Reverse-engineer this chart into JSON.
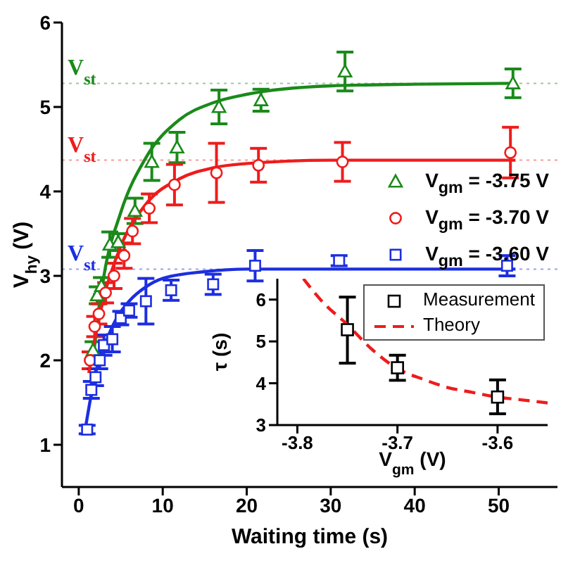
{
  "chart_data": [
    {
      "type": "scatter",
      "xlabel": "Waiting time (s)",
      "ylabel": "V$_{hy}$ (V)",
      "xlim": [
        -2,
        57
      ],
      "xticks": [
        0,
        10,
        20,
        30,
        40,
        50
      ],
      "ylim": [
        0.5,
        6
      ],
      "yticks": [
        1,
        2,
        3,
        4,
        5,
        6
      ],
      "legend": "right",
      "series": [
        {
          "name": "V$_{gm}$ = -3.75 V",
          "color": "#1a8a1a",
          "marker": "triangle",
          "x": [
            1.7,
            2.2,
            2.7,
            3.7,
            4.7,
            6.7,
            8.7,
            11.7,
            16.7,
            21.7,
            31.7,
            51.7
          ],
          "values": [
            2.12,
            2.77,
            2.88,
            3.37,
            3.4,
            3.77,
            4.35,
            4.52,
            5.0,
            5.08,
            5.42,
            5.28
          ],
          "errors": [
            0.1,
            0.1,
            0.1,
            0.15,
            0.1,
            0.15,
            0.22,
            0.18,
            0.2,
            0.13,
            0.23,
            0.17
          ]
        },
        {
          "name": "V$_{gm}$ = -3.70 V",
          "color": "#ee1c1c",
          "marker": "circle",
          "x": [
            1.35,
            1.9,
            2.4,
            3.2,
            4.2,
            5.4,
            6.4,
            8.4,
            11.4,
            16.4,
            21.4,
            31.4,
            51.4
          ],
          "values": [
            2.0,
            2.4,
            2.55,
            2.8,
            3.0,
            3.24,
            3.53,
            3.8,
            4.08,
            4.22,
            4.31,
            4.35,
            4.46
          ],
          "errors": [
            0.1,
            0.12,
            0.12,
            0.12,
            0.15,
            0.15,
            0.15,
            0.17,
            0.24,
            0.35,
            0.2,
            0.23,
            0.3
          ]
        },
        {
          "name": "V$_{gm}$ = -3.60 V",
          "color": "#1c2ee0",
          "marker": "square",
          "x": [
            1,
            1.5,
            2,
            2.5,
            3,
            4,
            5,
            6,
            8,
            11,
            16,
            21,
            31,
            51
          ],
          "values": [
            1.18,
            1.65,
            1.8,
            2.0,
            2.18,
            2.25,
            2.5,
            2.59,
            2.7,
            2.83,
            2.9,
            3.12,
            3.18,
            3.12
          ],
          "errors": [
            0.05,
            0.1,
            0.1,
            0.1,
            0.12,
            0.15,
            0.08,
            0.08,
            0.27,
            0.12,
            0.12,
            0.18,
            0.06,
            0.12
          ]
        },
        {
          "type": "line",
          "color": "#1a8a1a",
          "marker": "none",
          "x": [
            1.8,
            3,
            5,
            8,
            12,
            16,
            20,
            30,
            40,
            52
          ],
          "values": [
            2.1,
            3.0,
            3.75,
            4.4,
            4.85,
            5.05,
            5.15,
            5.25,
            5.27,
            5.28
          ]
        },
        {
          "type": "line",
          "color": "#ee1c1c",
          "marker": "none",
          "x": [
            1.2,
            2,
            3,
            5,
            8,
            12,
            16,
            20,
            30,
            52
          ],
          "values": [
            1.85,
            2.3,
            2.75,
            3.35,
            3.85,
            4.15,
            4.28,
            4.33,
            4.37,
            4.37
          ]
        },
        {
          "type": "line",
          "color": "#1c2ee0",
          "marker": "none",
          "x": [
            0.8,
            1.5,
            2,
            3,
            4,
            6,
            8,
            10,
            15,
            20,
            52
          ],
          "values": [
            1.2,
            1.6,
            1.85,
            2.15,
            2.4,
            2.7,
            2.87,
            2.97,
            3.05,
            3.08,
            3.08
          ]
        }
      ],
      "ref_lines": [
        {
          "axis": "y",
          "value": 5.28,
          "label": "V$_{st}$",
          "color": "#1a8a1a",
          "line_style": "dotted"
        },
        {
          "axis": "y",
          "value": 4.37,
          "label": "V$_{st}$",
          "color": "#ee1c1c",
          "line_style": "dotted"
        },
        {
          "axis": "y",
          "value": 3.08,
          "label": "V$_{st}$",
          "color": "#1c2ee0",
          "line_style": "dotted"
        }
      ]
    },
    {
      "type": "scatter",
      "xlabel": "V$_{gm}$ (V)",
      "ylabel": "τ (s)",
      "xlim": [
        -3.82,
        -3.55
      ],
      "xticks": [
        -3.8,
        -3.7,
        -3.6
      ],
      "ylim": [
        3,
        6.5
      ],
      "yticks": [
        3,
        4,
        5,
        6
      ],
      "legend": "top right",
      "series": [
        {
          "name": "Measurement",
          "color": "#000000",
          "marker": "square",
          "x": [
            -3.75,
            -3.7,
            -3.6
          ],
          "values": [
            5.28,
            4.37,
            3.67
          ],
          "errors": [
            [
              4.48,
              6.06
            ],
            [
              4.07,
              4.67
            ],
            [
              3.27,
              4.08
            ]
          ]
        },
        {
          "name": "Theory",
          "type": "line",
          "color": "#ee1c1c",
          "marker": "none",
          "line_style": "dashed",
          "x": [
            -3.794,
            -3.775,
            -3.75,
            -3.725,
            -3.7,
            -3.675,
            -3.65,
            -3.625,
            -3.6,
            -3.575,
            -3.55
          ],
          "values": [
            6.5,
            5.95,
            5.4,
            4.8,
            4.35,
            4.1,
            3.9,
            3.78,
            3.67,
            3.6,
            3.53
          ]
        }
      ]
    }
  ]
}
